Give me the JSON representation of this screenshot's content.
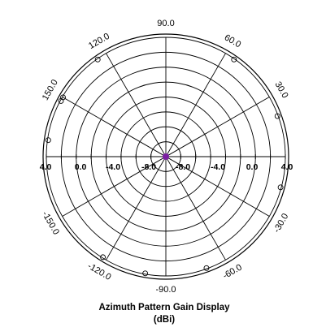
{
  "chart_data": {
    "type": "polar",
    "title": "Azimuth Pattern Gain Display",
    "subtitle": "(dBi)",
    "angular_tick_labels": [
      {
        "deg": 90,
        "text": "90.0"
      },
      {
        "deg": 60,
        "text": "60.0"
      },
      {
        "deg": 30,
        "text": "30.0"
      },
      {
        "deg": 120,
        "text": "120.0"
      },
      {
        "deg": 150,
        "text": "150.0"
      },
      {
        "deg": -30,
        "text": "-30.0"
      },
      {
        "deg": -60,
        "text": "-60.0"
      },
      {
        "deg": -90,
        "text": "-90.0"
      },
      {
        "deg": -120,
        "text": "-120.0"
      },
      {
        "deg": -150,
        "text": "-150.0"
      }
    ],
    "radial_tick_labels": [
      "4.0",
      "0.0",
      "-4.0",
      "-8.0",
      "-8.0",
      "-4.0",
      "0.0",
      "4.0"
    ],
    "gain_markers_deg": [
      172,
      150,
      55,
      125,
      20,
      -15,
      -70,
      -122,
      -100,
      152
    ],
    "gain_marker_level_dbi": 3.9,
    "rings_dbi": [
      -12,
      -10,
      -8,
      -6,
      -4,
      -2,
      0,
      2,
      4
    ],
    "r_range_dbi": [
      -12,
      4
    ],
    "spoke_step_deg": 30,
    "trace_color": "#7b1fa2",
    "grid": true
  }
}
